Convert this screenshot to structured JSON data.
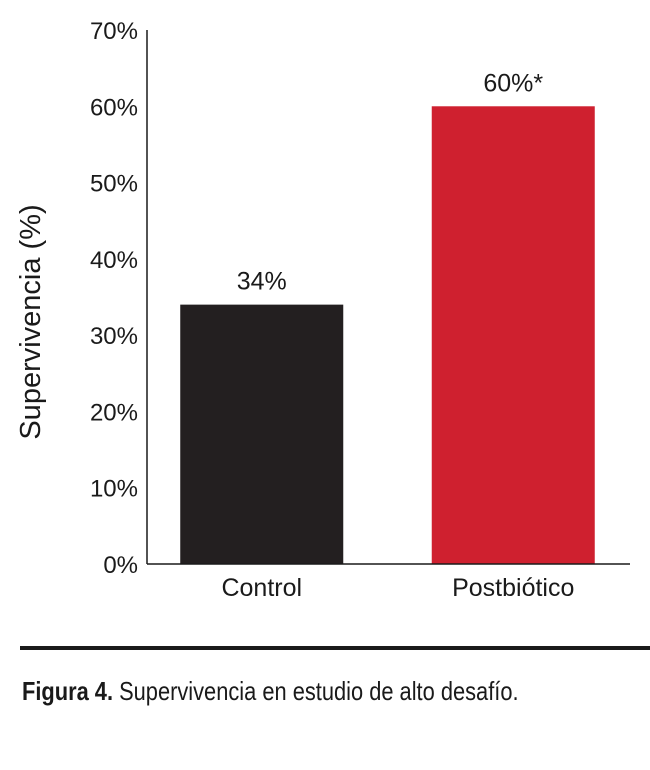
{
  "chart_data": {
    "type": "bar",
    "categories": [
      "Control",
      "Postbiótico"
    ],
    "values": [
      34,
      60
    ],
    "data_labels": [
      "34%",
      "60%*"
    ],
    "colors": [
      "#231f20",
      "#cf202f"
    ],
    "ylabel": "Supervivencia (%)",
    "ylim": [
      0,
      70
    ],
    "yticks": [
      0,
      10,
      20,
      30,
      40,
      50,
      60,
      70
    ],
    "ytick_labels": [
      "0%",
      "10%",
      "20%",
      "30%",
      "40%",
      "50%",
      "60%",
      "70%"
    ],
    "grid": false
  },
  "caption": {
    "label": "Figura 4.",
    "text": " Supervivencia en estudio de alto desafío."
  }
}
